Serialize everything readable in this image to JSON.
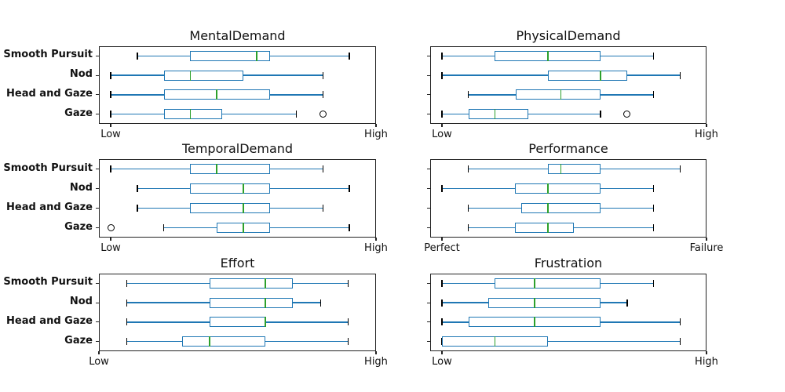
{
  "figure_background": "#ffffff",
  "colors": {
    "box_line": "#1f77b4",
    "whisker_line": "#1f77b4",
    "median_line": "#2ca02c",
    "cap_line": "#000000",
    "outlier_line": "#000000",
    "spine": "#222222",
    "text": "#111111"
  },
  "categories_top_to_bottom": [
    "Smooth Pursuit",
    "Nod",
    "Head and Gaze",
    "Gaze"
  ],
  "chart_data": [
    {
      "type": "boxplot",
      "orientation": "horizontal",
      "title": "MentalDemand",
      "xlim": [
        -4.45,
        100
      ],
      "grid": false,
      "x_ticks": [
        {
          "value": 0,
          "label": "Low"
        },
        {
          "value": 100,
          "label": "High"
        }
      ],
      "boxes": [
        {
          "category": "Smooth Pursuit",
          "whislo": 10,
          "q1": 30,
          "med": 55,
          "q3": 60,
          "whishi": 90,
          "outliers": []
        },
        {
          "category": "Nod",
          "whislo": 0,
          "q1": 20,
          "med": 30,
          "q3": 50,
          "whishi": 80,
          "outliers": []
        },
        {
          "category": "Head and Gaze",
          "whislo": 0,
          "q1": 20,
          "med": 40,
          "q3": 60,
          "whishi": 80,
          "outliers": []
        },
        {
          "category": "Gaze",
          "whislo": 0,
          "q1": 20,
          "med": 30,
          "q3": 42,
          "whishi": 70,
          "outliers": [
            80
          ]
        }
      ]
    },
    {
      "type": "boxplot",
      "orientation": "horizontal",
      "title": "PhysicalDemand",
      "xlim": [
        -4.45,
        100
      ],
      "grid": false,
      "x_ticks": [
        {
          "value": 0,
          "label": "Low"
        },
        {
          "value": 100,
          "label": "High"
        }
      ],
      "boxes": [
        {
          "category": "Smooth Pursuit",
          "whislo": 0,
          "q1": 20,
          "med": 40,
          "q3": 60,
          "whishi": 80,
          "outliers": []
        },
        {
          "category": "Nod",
          "whislo": 0,
          "q1": 40,
          "med": 60,
          "q3": 70,
          "whishi": 90,
          "outliers": []
        },
        {
          "category": "Head and Gaze",
          "whislo": 10,
          "q1": 28,
          "med": 45,
          "q3": 60,
          "whishi": 80,
          "outliers": []
        },
        {
          "category": "Gaze",
          "whislo": 0,
          "q1": 10,
          "med": 20,
          "q3": 32.5,
          "whishi": 60,
          "outliers": [
            70
          ]
        }
      ]
    },
    {
      "type": "boxplot",
      "orientation": "horizontal",
      "title": "TemporalDemand",
      "xlim": [
        -4.45,
        100
      ],
      "grid": false,
      "x_ticks": [
        {
          "value": 0,
          "label": "Low"
        },
        {
          "value": 100,
          "label": "High"
        }
      ],
      "boxes": [
        {
          "category": "Smooth Pursuit",
          "whislo": 0,
          "q1": 30,
          "med": 40,
          "q3": 60,
          "whishi": 80,
          "outliers": []
        },
        {
          "category": "Nod",
          "whislo": 10,
          "q1": 30,
          "med": 50,
          "q3": 60,
          "whishi": 90,
          "outliers": []
        },
        {
          "category": "Head and Gaze",
          "whislo": 10,
          "q1": 30,
          "med": 50,
          "q3": 60,
          "whishi": 80,
          "outliers": []
        },
        {
          "category": "Gaze",
          "whislo": 20,
          "q1": 40,
          "med": 50,
          "q3": 60,
          "whishi": 90,
          "outliers": [
            0
          ]
        }
      ]
    },
    {
      "type": "boxplot",
      "orientation": "horizontal",
      "title": "Performance",
      "xlim": [
        -4.45,
        100
      ],
      "grid": false,
      "x_ticks": [
        {
          "value": 0,
          "label": "Perfect"
        },
        {
          "value": 100,
          "label": "Failure"
        }
      ],
      "boxes": [
        {
          "category": "Smooth Pursuit",
          "whislo": 10,
          "q1": 40,
          "med": 45,
          "q3": 60,
          "whishi": 90,
          "outliers": []
        },
        {
          "category": "Nod",
          "whislo": 0,
          "q1": 27.5,
          "med": 40,
          "q3": 60,
          "whishi": 80,
          "outliers": []
        },
        {
          "category": "Head and Gaze",
          "whislo": 10,
          "q1": 30,
          "med": 40,
          "q3": 60,
          "whishi": 80,
          "outliers": []
        },
        {
          "category": "Gaze",
          "whislo": 10,
          "q1": 27.5,
          "med": 40,
          "q3": 50,
          "whishi": 80,
          "outliers": []
        }
      ]
    },
    {
      "type": "boxplot",
      "orientation": "horizontal",
      "title": "Effort",
      "xlim": [
        0,
        100
      ],
      "grid": false,
      "x_ticks": [
        {
          "value": 0,
          "label": "Low"
        },
        {
          "value": 100,
          "label": "High"
        }
      ],
      "boxes": [
        {
          "category": "Smooth Pursuit",
          "whislo": 10,
          "q1": 40,
          "med": 60,
          "q3": 70,
          "whishi": 90,
          "outliers": []
        },
        {
          "category": "Nod",
          "whislo": 10,
          "q1": 40,
          "med": 60,
          "q3": 70,
          "whishi": 80,
          "outliers": []
        },
        {
          "category": "Head and Gaze",
          "whislo": 10,
          "q1": 40,
          "med": 60,
          "q3": 60,
          "whishi": 90,
          "outliers": []
        },
        {
          "category": "Gaze",
          "whislo": 10,
          "q1": 30,
          "med": 40,
          "q3": 60,
          "whishi": 90,
          "outliers": []
        }
      ]
    },
    {
      "type": "boxplot",
      "orientation": "horizontal",
      "title": "Frustration",
      "xlim": [
        -4.45,
        100
      ],
      "grid": false,
      "x_ticks": [
        {
          "value": 0,
          "label": "Low"
        },
        {
          "value": 100,
          "label": "High"
        }
      ],
      "boxes": [
        {
          "category": "Smooth Pursuit",
          "whislo": 0,
          "q1": 20,
          "med": 35,
          "q3": 60,
          "whishi": 80,
          "outliers": []
        },
        {
          "category": "Nod",
          "whislo": 0,
          "q1": 17.5,
          "med": 35,
          "q3": 60,
          "whishi": 70,
          "outliers": []
        },
        {
          "category": "Head and Gaze",
          "whislo": 0,
          "q1": 10,
          "med": 35,
          "q3": 60,
          "whishi": 90,
          "outliers": []
        },
        {
          "category": "Gaze",
          "whislo": 0,
          "q1": 0,
          "med": 20,
          "q3": 40,
          "whishi": 90,
          "outliers": []
        }
      ]
    }
  ]
}
